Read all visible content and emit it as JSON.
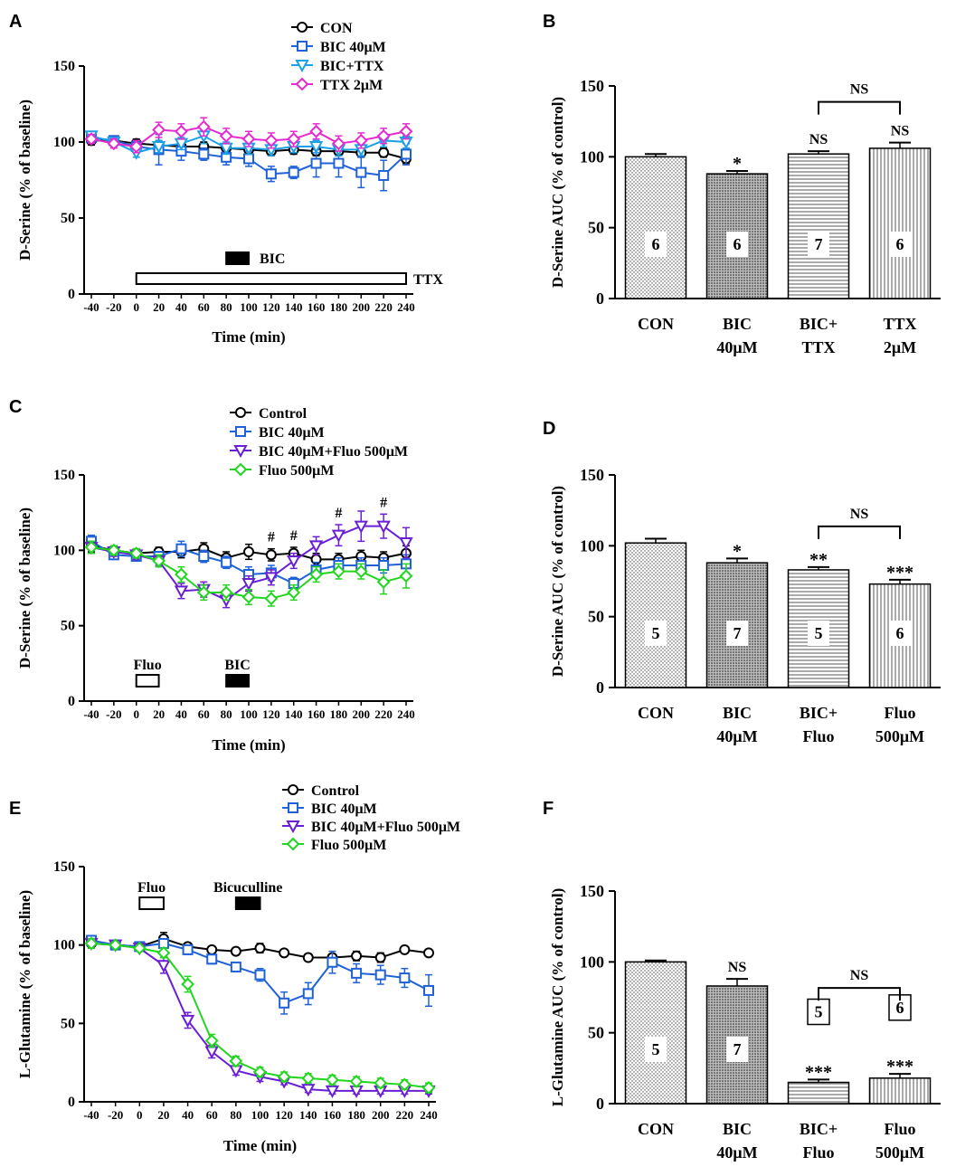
{
  "panels": [
    "A",
    "B",
    "C",
    "D",
    "E",
    "F"
  ],
  "colors": {
    "control": "#000000",
    "bic": "#1f62d8",
    "bic_ttx": "#1da1e6",
    "ttx": "#e62ad2",
    "bic_fluo": "#6a1fd4",
    "fluo": "#22d61f"
  },
  "chart_data": [
    {
      "panel": "A",
      "type": "line",
      "xlabel": "Time (min)",
      "ylabel": "D-Serine (% of baseline)",
      "ylim": [
        0,
        150
      ],
      "x": [
        -40,
        -20,
        0,
        20,
        40,
        60,
        80,
        100,
        120,
        140,
        160,
        180,
        200,
        220,
        240
      ],
      "series": [
        {
          "name": "CON",
          "color_key": "control",
          "marker": "circle",
          "values": [
            101,
            101,
            99,
            98,
            97,
            97,
            96,
            95,
            94,
            95,
            94,
            94,
            93,
            93,
            89
          ],
          "err": [
            3,
            3,
            3,
            3,
            3,
            3,
            3,
            3,
            3,
            3,
            3,
            3,
            3,
            3,
            3
          ]
        },
        {
          "name": "BIC 40μM",
          "color_key": "bic",
          "marker": "square",
          "values": [
            103,
            101,
            97,
            95,
            94,
            92,
            90,
            89,
            79,
            80,
            86,
            86,
            80,
            78,
            92
          ],
          "err": [
            3,
            3,
            4,
            10,
            6,
            4,
            5,
            5,
            5,
            4,
            9,
            9,
            10,
            10,
            7
          ]
        },
        {
          "name": "BIC+TTX",
          "color_key": "bic_ttx",
          "marker": "tri-down",
          "values": [
            104,
            100,
            93,
            97,
            99,
            104,
            96,
            96,
            95,
            97,
            97,
            95,
            95,
            101,
            100
          ],
          "err": [
            3,
            3,
            3,
            4,
            4,
            5,
            4,
            4,
            4,
            4,
            4,
            4,
            4,
            4,
            4
          ]
        },
        {
          "name": "TTX 2μM",
          "color_key": "ttx",
          "marker": "diamond",
          "values": [
            102,
            99,
            97,
            108,
            107,
            110,
            104,
            102,
            101,
            102,
            107,
            99,
            101,
            104,
            107
          ],
          "err": [
            3,
            3,
            4,
            5,
            5,
            6,
            5,
            5,
            5,
            5,
            5,
            5,
            5,
            5,
            5
          ]
        }
      ],
      "bars": [
        {
          "label": "BIC",
          "fill": "black",
          "from": 80,
          "to": 100
        },
        {
          "label": "TTX",
          "fill": "white",
          "from": 0,
          "to": 240
        }
      ]
    },
    {
      "panel": "B",
      "type": "bar",
      "ylabel": "D-Serine AUC (% of control)",
      "ylim": [
        0,
        150
      ],
      "categories": [
        "CON",
        "BIC 40μM",
        "BIC+ TTX",
        "TTX 2μM"
      ],
      "values": [
        100,
        88,
        102,
        106
      ],
      "err": [
        2,
        2,
        2,
        4
      ],
      "n": [
        "6",
        "6",
        "7",
        "6"
      ],
      "sig": [
        "",
        "*",
        "NS",
        "NS"
      ],
      "bracket": {
        "label": "NS",
        "from": 2,
        "to": 3
      }
    },
    {
      "panel": "C",
      "type": "line",
      "xlabel": "Time (min)",
      "ylabel": "D-Serine (% of baseline)",
      "ylim": [
        0,
        150
      ],
      "x": [
        -40,
        -20,
        0,
        20,
        40,
        60,
        80,
        100,
        120,
        140,
        160,
        180,
        200,
        220,
        240
      ],
      "series": [
        {
          "name": "Control",
          "color_key": "control",
          "marker": "circle",
          "values": [
            103,
            100,
            98,
            99,
            99,
            101,
            95,
            99,
            97,
            98,
            94,
            94,
            96,
            95,
            98
          ],
          "err": [
            4,
            3,
            3,
            3,
            4,
            4,
            4,
            5,
            4,
            4,
            4,
            4,
            4,
            4,
            5
          ]
        },
        {
          "name": "BIC 40μM",
          "color_key": "bic",
          "marker": "square",
          "values": [
            106,
            97,
            96,
            96,
            101,
            96,
            92,
            84,
            85,
            78,
            87,
            90,
            90,
            90,
            91
          ],
          "err": [
            4,
            3,
            3,
            3,
            5,
            4,
            4,
            5,
            5,
            4,
            5,
            5,
            5,
            5,
            6
          ]
        },
        {
          "name": "BIC 40μM+Fluo 500μM",
          "color_key": "bic_fluo",
          "marker": "tri-down",
          "values": [
            102,
            99,
            97,
            93,
            73,
            74,
            67,
            78,
            82,
            93,
            103,
            110,
            116,
            116,
            105
          ],
          "err": [
            4,
            3,
            3,
            3,
            5,
            5,
            5,
            5,
            5,
            5,
            6,
            7,
            10,
            8,
            10
          ]
        },
        {
          "name": "Fluo 500μM",
          "color_key": "fluo",
          "marker": "diamond",
          "values": [
            102,
            100,
            98,
            93,
            84,
            72,
            72,
            69,
            68,
            72,
            84,
            86,
            86,
            79,
            83
          ],
          "err": [
            4,
            3,
            3,
            4,
            5,
            5,
            5,
            5,
            5,
            5,
            5,
            5,
            5,
            8,
            8
          ]
        }
      ],
      "hash_marks": [
        120,
        140,
        180,
        220
      ],
      "bars": [
        {
          "label": "Fluo",
          "fill": "white",
          "from": 0,
          "to": 20
        },
        {
          "label": "BIC",
          "fill": "black",
          "from": 80,
          "to": 100
        }
      ]
    },
    {
      "panel": "D",
      "type": "bar",
      "ylabel": "D-Serine AUC (% of control)",
      "ylim": [
        0,
        150
      ],
      "categories": [
        "CON",
        "BIC 40μM",
        "BIC+ Fluo",
        "Fluo 500μM"
      ],
      "values": [
        102,
        88,
        83,
        73
      ],
      "err": [
        3,
        3,
        2,
        3
      ],
      "n": [
        "5",
        "7",
        "5",
        "6"
      ],
      "sig": [
        "",
        "*",
        "**",
        "***"
      ],
      "bracket": {
        "label": "NS",
        "from": 2,
        "to": 3
      }
    },
    {
      "panel": "E",
      "type": "line",
      "xlabel": "Time (min)",
      "ylabel": "L-Glutamine (% of baseline)",
      "ylim": [
        0,
        150
      ],
      "x": [
        -40,
        -20,
        0,
        20,
        40,
        60,
        80,
        100,
        120,
        140,
        160,
        180,
        200,
        220,
        240
      ],
      "series": [
        {
          "name": "Control",
          "color_key": "control",
          "marker": "circle",
          "values": [
            101,
            100,
            99,
            104,
            99,
            97,
            96,
            98,
            95,
            92,
            92,
            93,
            92,
            97,
            95
          ],
          "err": [
            3,
            2,
            2,
            4,
            2,
            2,
            2,
            3,
            2,
            2,
            2,
            3,
            3,
            2,
            2
          ]
        },
        {
          "name": "BIC 40μM",
          "color_key": "bic",
          "marker": "square",
          "values": [
            103,
            100,
            99,
            101,
            97,
            91,
            86,
            81,
            63,
            69,
            89,
            82,
            81,
            79,
            71
          ],
          "err": [
            3,
            2,
            2,
            2,
            3,
            3,
            3,
            4,
            7,
            7,
            7,
            6,
            6,
            6,
            10
          ]
        },
        {
          "name": "BIC 40μM+Fluo 500μM",
          "color_key": "bic_fluo",
          "marker": "tri-down",
          "values": [
            101,
            100,
            98,
            87,
            52,
            32,
            20,
            16,
            13,
            8,
            7,
            7,
            7,
            7,
            7
          ],
          "err": [
            3,
            2,
            2,
            5,
            5,
            4,
            3,
            3,
            2,
            2,
            2,
            2,
            2,
            2,
            2
          ]
        },
        {
          "name": "Fluo 500μM",
          "color_key": "fluo",
          "marker": "diamond",
          "values": [
            101,
            100,
            98,
            95,
            75,
            39,
            26,
            19,
            16,
            15,
            14,
            13,
            12,
            11,
            9
          ],
          "err": [
            3,
            2,
            2,
            3,
            5,
            4,
            3,
            3,
            3,
            3,
            3,
            3,
            3,
            3,
            3
          ]
        }
      ],
      "bars": [
        {
          "label": "Fluo",
          "fill": "white",
          "from": 0,
          "to": 20
        },
        {
          "label": "Bicuculline",
          "fill": "black",
          "from": 80,
          "to": 100
        }
      ]
    },
    {
      "panel": "F",
      "type": "bar",
      "ylabel": "L-Glutamine AUC (% of control)",
      "ylim": [
        0,
        150
      ],
      "categories": [
        "CON",
        "BIC 40μM",
        "BIC+ Fluo",
        "Fluo 500μM"
      ],
      "values": [
        100,
        83,
        15,
        18
      ],
      "err": [
        1,
        5,
        2,
        3
      ],
      "n": [
        "5",
        "7",
        "5",
        "6"
      ],
      "sig": [
        "",
        "NS",
        "***",
        "***"
      ],
      "bracket": {
        "label": "NS",
        "from": 2,
        "to": 3
      }
    }
  ]
}
